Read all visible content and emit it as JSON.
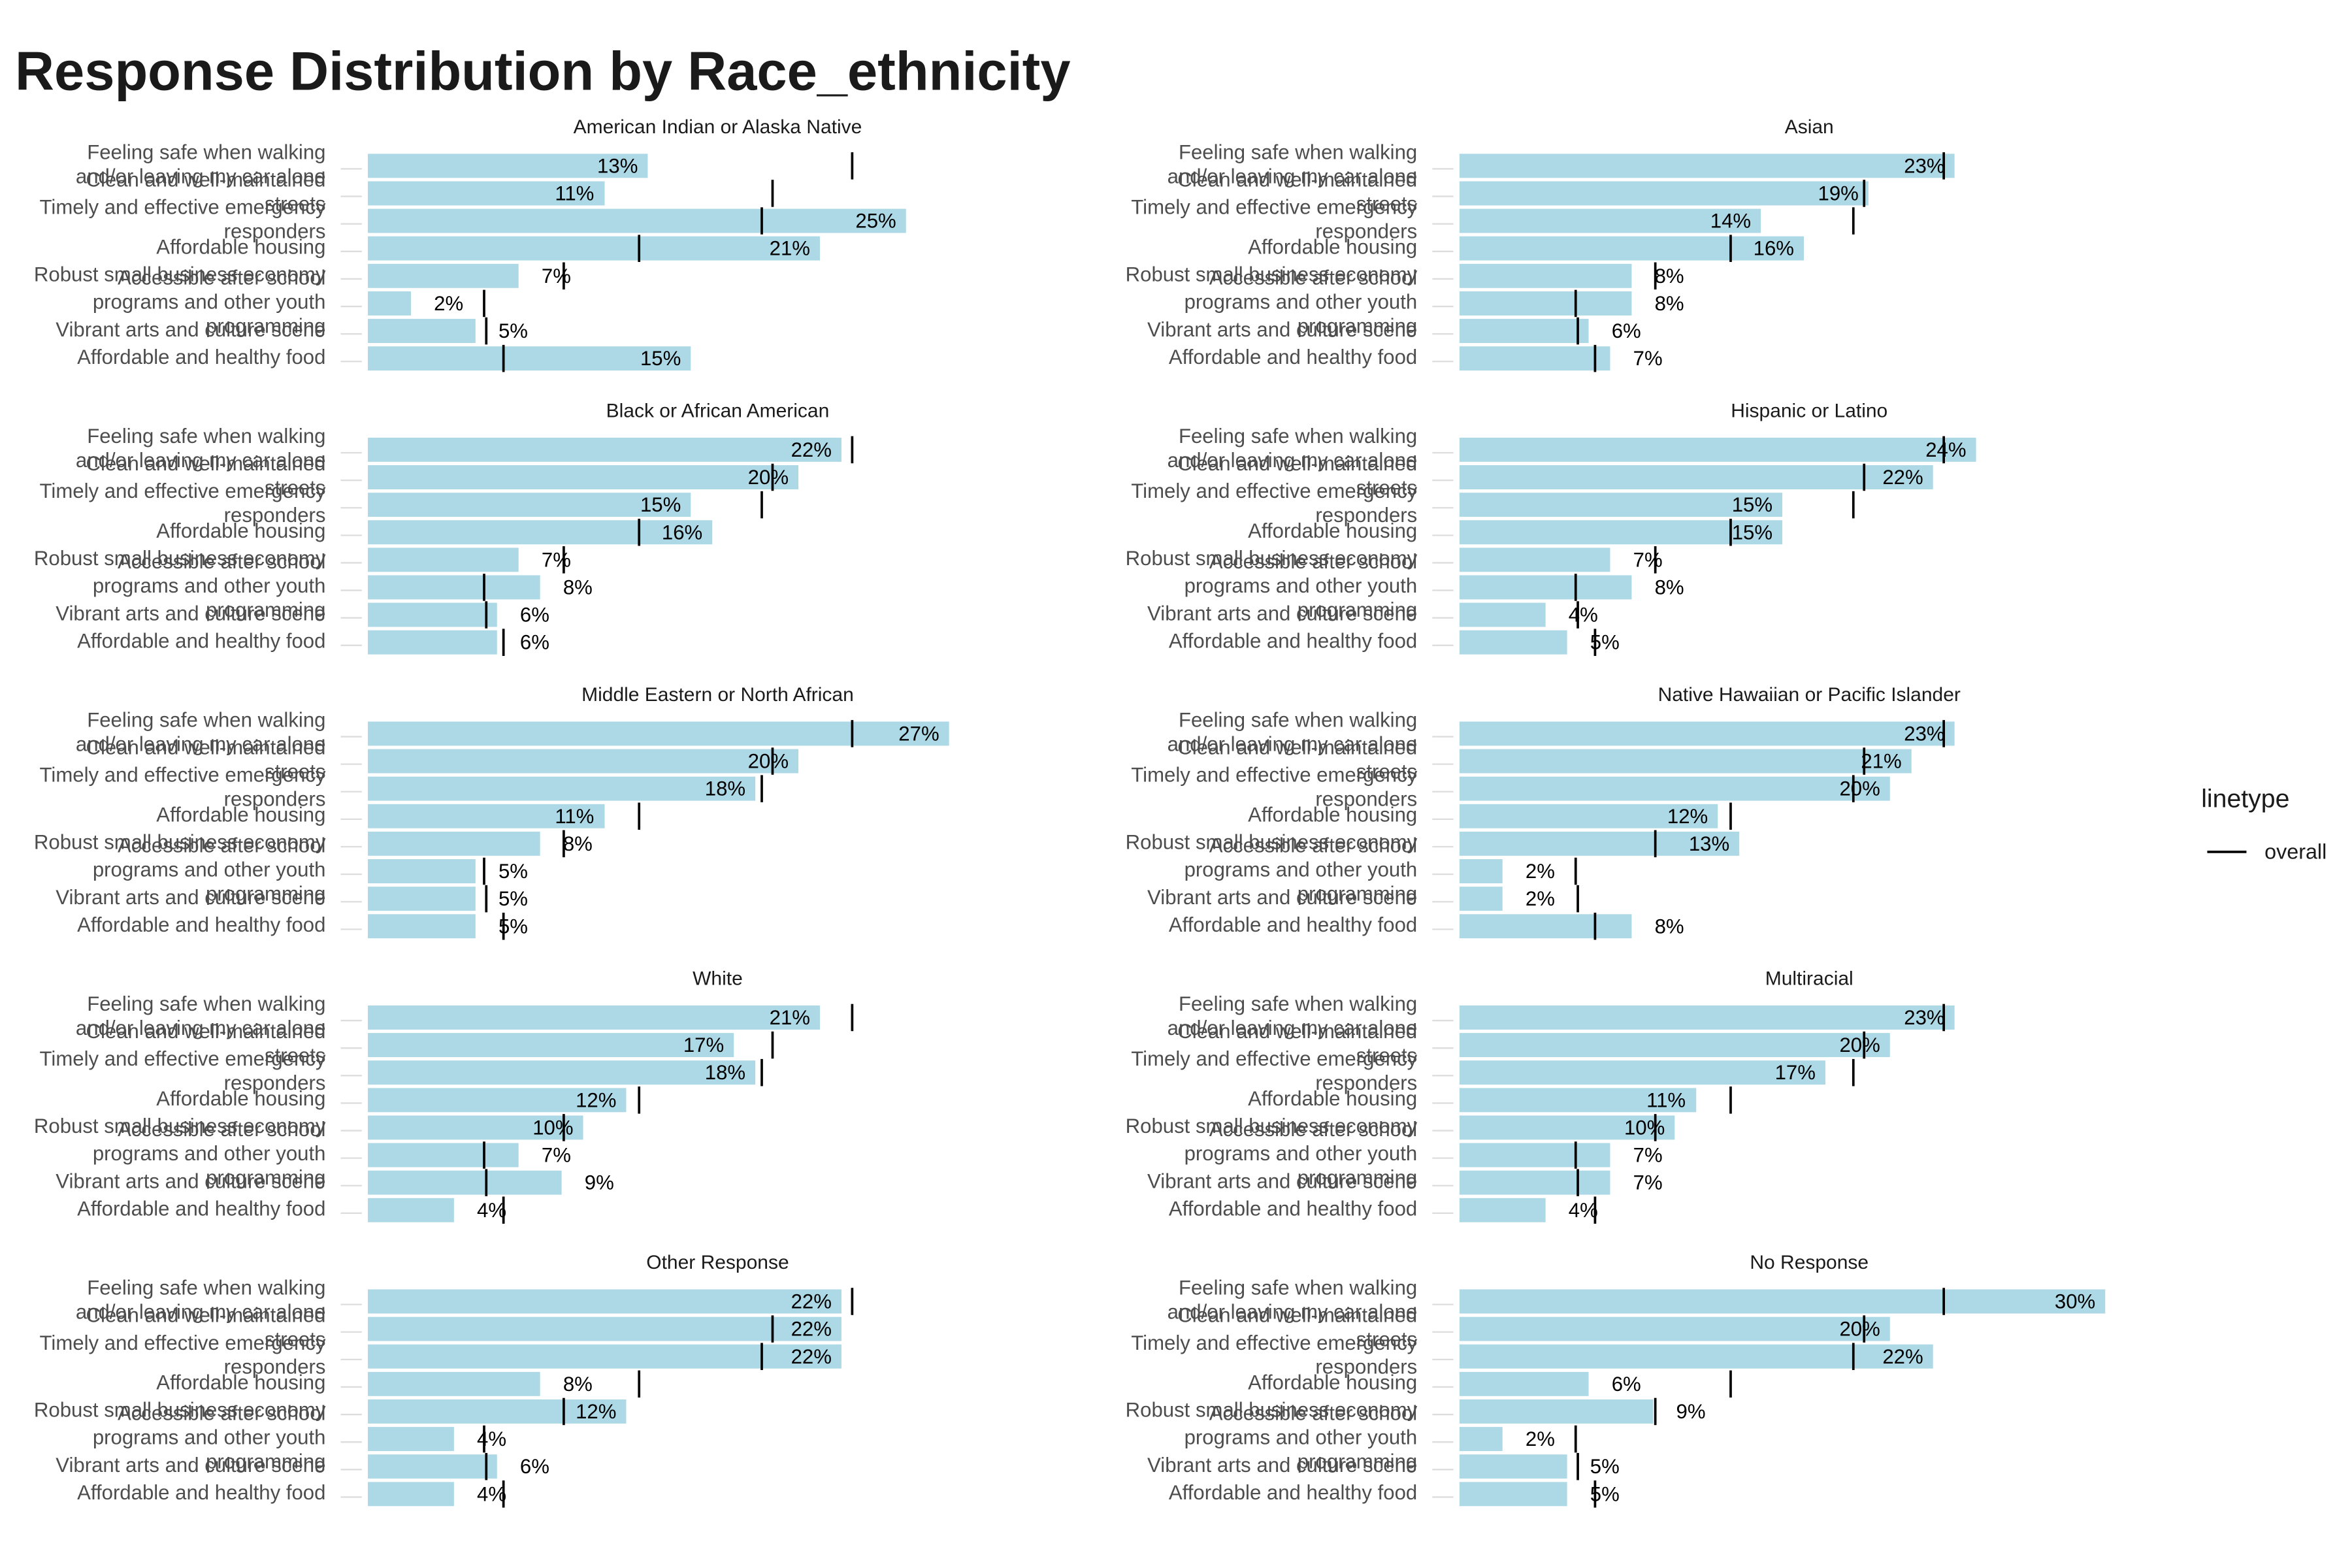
{
  "chart_data": {
    "type": "bar",
    "title": "Response Distribution by Race_ethnicity",
    "categories": [
      "Feeling safe when walking and/or leaving my car alone",
      "Clean and well-maintained streets",
      "Timely and effective emergency responders",
      "Affordable housing",
      "Robust small business economy",
      "Accessible after school programs and other youth programming",
      "Vibrant arts and culture scene",
      "Affordable and healthy food"
    ],
    "color": "#add8e6",
    "xlim": [
      0,
      32.5
    ],
    "legend_title": "linetype",
    "overall": {
      "name": "overall",
      "color": "#000000",
      "values": [
        22.5,
        18.8,
        18.3,
        12.6,
        9.1,
        5.4,
        5.5,
        6.3
      ]
    },
    "facets": [
      {
        "title": "American Indian or Alaska Native",
        "values": [
          13,
          11,
          25,
          21,
          7,
          2,
          5,
          15
        ],
        "value_labels": [
          "13%",
          "11%",
          "25%",
          "21%",
          "7%",
          "2%",
          "5%",
          "15%"
        ]
      },
      {
        "title": "Asian",
        "values": [
          23,
          19,
          14,
          16,
          8,
          8,
          6,
          7
        ],
        "value_labels": [
          "23%",
          "19%",
          "14%",
          "16%",
          "8%",
          "8%",
          "6%",
          "7%"
        ]
      },
      {
        "title": "Black or African American",
        "values": [
          22,
          20,
          15,
          16,
          7,
          8,
          6,
          6
        ],
        "value_labels": [
          "22%",
          "20%",
          "15%",
          "16%",
          "7%",
          "8%",
          "6%",
          "6%"
        ]
      },
      {
        "title": "Hispanic or Latino",
        "values": [
          24,
          22,
          15,
          15,
          7,
          8,
          4,
          5
        ],
        "value_labels": [
          "24%",
          "22%",
          "15%",
          "15%",
          "7%",
          "8%",
          "4%",
          "5%"
        ]
      },
      {
        "title": "Middle Eastern or North African",
        "values": [
          27,
          20,
          18,
          11,
          8,
          5,
          5,
          5
        ],
        "value_labels": [
          "27%",
          "20%",
          "18%",
          "11%",
          "8%",
          "5%",
          "5%",
          "5%"
        ]
      },
      {
        "title": "Native Hawaiian or Pacific Islander",
        "values": [
          23,
          21,
          20,
          12,
          13,
          2,
          2,
          8
        ],
        "value_labels": [
          "23%",
          "21%",
          "20%",
          "12%",
          "13%",
          "2%",
          "2%",
          "8%"
        ]
      },
      {
        "title": "White",
        "values": [
          21,
          17,
          18,
          12,
          10,
          7,
          9,
          4
        ],
        "value_labels": [
          "21%",
          "17%",
          "18%",
          "12%",
          "10%",
          "7%",
          "9%",
          "4%"
        ]
      },
      {
        "title": "Multiracial",
        "values": [
          23,
          20,
          17,
          11,
          10,
          7,
          7,
          4
        ],
        "value_labels": [
          "23%",
          "20%",
          "17%",
          "11%",
          "10%",
          "7%",
          "7%",
          "4%"
        ]
      },
      {
        "title": "Other Response",
        "values": [
          22,
          22,
          22,
          8,
          12,
          4,
          6,
          4
        ],
        "value_labels": [
          "22%",
          "22%",
          "22%",
          "8%",
          "12%",
          "4%",
          "6%",
          "4%"
        ]
      },
      {
        "title": "No Response",
        "values": [
          30,
          20,
          22,
          6,
          9,
          2,
          5,
          5
        ],
        "value_labels": [
          "30%",
          "20%",
          "22%",
          "6%",
          "9%",
          "2%",
          "5%",
          "5%"
        ]
      }
    ]
  }
}
